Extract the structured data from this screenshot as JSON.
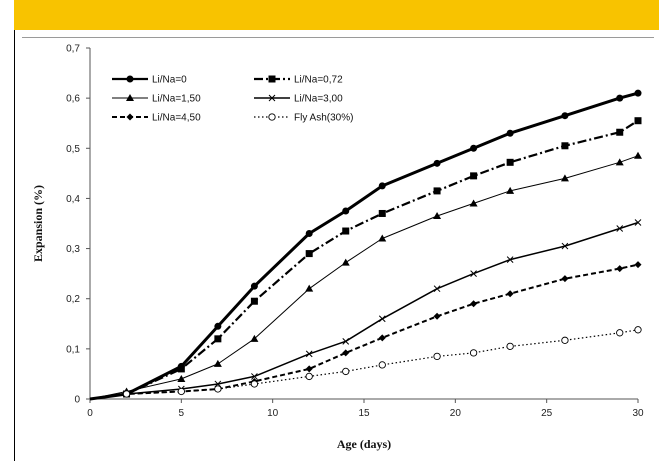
{
  "chart_data": {
    "type": "line",
    "title": "",
    "xlabel": "Age (days)",
    "ylabel": "Expansion (%)",
    "xlim": [
      0,
      30
    ],
    "ylim": [
      0,
      0.7
    ],
    "x_ticks": [
      "0",
      "5",
      "10",
      "15",
      "20",
      "25",
      "30"
    ],
    "y_ticks": [
      "0",
      "0,1",
      "0,2",
      "0,3",
      "0,4",
      "0,5",
      "0,6",
      "0,7"
    ],
    "grid": false,
    "legend_position": "top-left",
    "series": [
      {
        "name": "Li/Na=0",
        "color": "#000000",
        "marker": "circle-filled",
        "dash": "solid",
        "width": 3,
        "x": [
          0,
          2,
          5,
          7,
          9,
          12,
          14,
          16,
          19,
          21,
          23,
          26,
          29,
          30
        ],
        "y": [
          0,
          0.01,
          0.065,
          0.145,
          0.225,
          0.33,
          0.375,
          0.425,
          0.47,
          0.5,
          0.53,
          0.565,
          0.6,
          0.61
        ]
      },
      {
        "name": "Li/Na=0,72",
        "color": "#000000",
        "marker": "square-filled",
        "dash": "dashdot",
        "width": 2.2,
        "x": [
          0,
          2,
          5,
          7,
          9,
          12,
          14,
          16,
          19,
          21,
          23,
          26,
          29,
          30
        ],
        "y": [
          0,
          0.01,
          0.06,
          0.12,
          0.195,
          0.29,
          0.335,
          0.37,
          0.415,
          0.445,
          0.472,
          0.505,
          0.532,
          0.555
        ]
      },
      {
        "name": "Li/Na=1,50",
        "color": "#000000",
        "marker": "triangle-filled",
        "dash": "solid",
        "width": 1,
        "x": [
          0,
          2,
          5,
          7,
          9,
          12,
          14,
          16,
          19,
          21,
          23,
          26,
          29,
          30
        ],
        "y": [
          0,
          0.015,
          0.04,
          0.07,
          0.12,
          0.22,
          0.272,
          0.32,
          0.365,
          0.39,
          0.415,
          0.44,
          0.472,
          0.485
        ]
      },
      {
        "name": "Li/Na=3,00",
        "color": "#000000",
        "marker": "x",
        "dash": "solid",
        "width": 1.5,
        "x": [
          0,
          2,
          5,
          7,
          9,
          12,
          14,
          16,
          19,
          21,
          23,
          26,
          29,
          30
        ],
        "y": [
          0,
          0.01,
          0.02,
          0.03,
          0.045,
          0.09,
          0.115,
          0.16,
          0.22,
          0.25,
          0.278,
          0.305,
          0.34,
          0.352
        ]
      },
      {
        "name": "Li/Na=4,50",
        "color": "#000000",
        "marker": "diamond-filled",
        "dash": "dashed",
        "width": 2,
        "x": [
          0,
          2,
          5,
          7,
          9,
          12,
          14,
          16,
          19,
          21,
          23,
          26,
          29,
          30
        ],
        "y": [
          0,
          0.01,
          0.015,
          0.02,
          0.035,
          0.06,
          0.092,
          0.122,
          0.165,
          0.19,
          0.21,
          0.24,
          0.26,
          0.268
        ]
      },
      {
        "name": "Fly Ash(30%)",
        "color": "#000000",
        "marker": "circle-open",
        "dash": "dotted",
        "width": 1.2,
        "x": [
          0,
          2,
          5,
          7,
          9,
          12,
          14,
          16,
          19,
          21,
          23,
          26,
          29,
          30
        ],
        "y": [
          0,
          0.01,
          0.015,
          0.02,
          0.03,
          0.045,
          0.055,
          0.068,
          0.085,
          0.092,
          0.105,
          0.117,
          0.132,
          0.138
        ]
      }
    ]
  }
}
